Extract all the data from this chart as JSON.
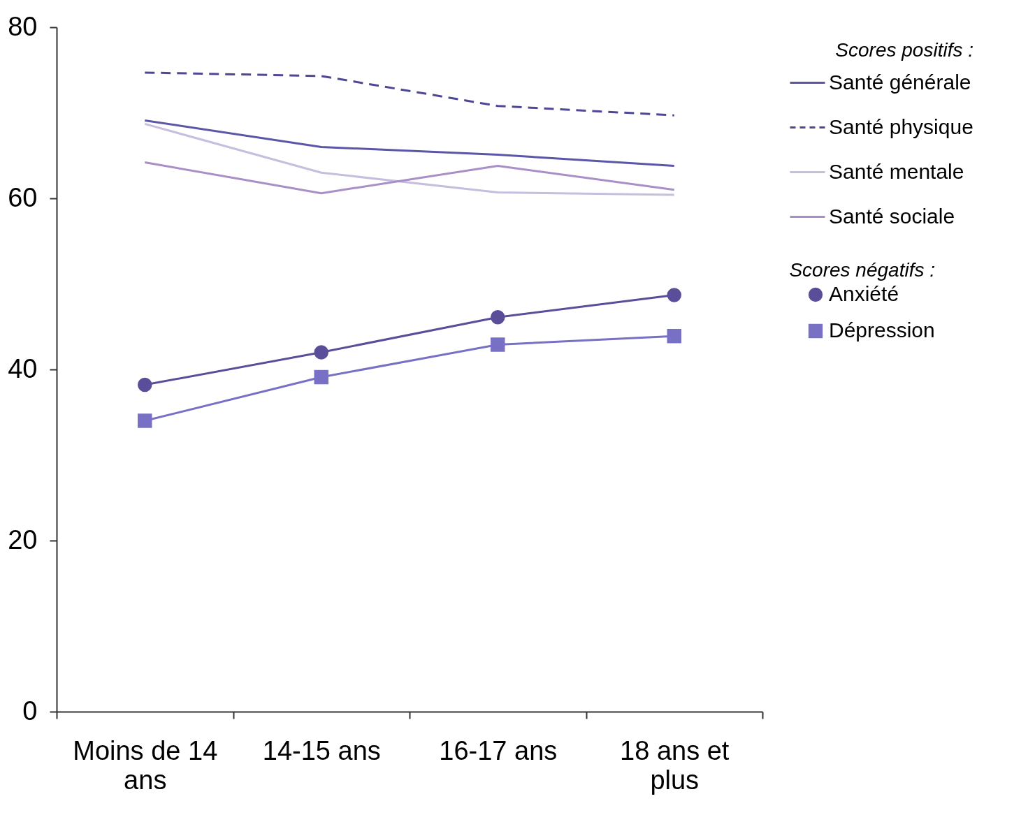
{
  "chart_data": {
    "type": "line",
    "categories": [
      "Moins de 14 ans",
      "14-15 ans",
      "16-17 ans",
      "18 ans et plus"
    ],
    "ylim": [
      0,
      80
    ],
    "yticks": [
      0,
      20,
      40,
      60,
      80
    ],
    "legend": "right",
    "legend_title": [
      "Scores positifs :",
      "Scores négatifs :"
    ],
    "marker": "none",
    "line_style": "solid",
    "series": [
      {
        "name": "Santé générale",
        "color": "#5b56a8",
        "values": [
          69.1,
          66.0,
          65.1,
          63.8
        ]
      },
      {
        "name": "Santé physique",
        "color": "#4e4796",
        "line_style": "dashed",
        "values": [
          74.7,
          74.3,
          70.8,
          69.7
        ]
      },
      {
        "name": "Santé mentale",
        "color": "#c6bedf",
        "values": [
          68.7,
          63.0,
          60.7,
          60.4
        ]
      },
      {
        "name": "Santé sociale",
        "color": "#a98fc8",
        "values": [
          64.2,
          60.6,
          63.8,
          61.0
        ]
      },
      {
        "name": "Anxiété",
        "color": "#5a4d9a",
        "marker": "circle",
        "values": [
          38.2,
          42.0,
          46.1,
          48.7
        ]
      },
      {
        "name": "Dépression",
        "color": "#7770c4",
        "marker": "square",
        "values": [
          34.0,
          39.1,
          42.9,
          43.9
        ]
      }
    ]
  }
}
